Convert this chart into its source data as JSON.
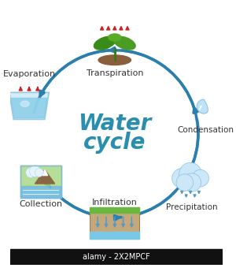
{
  "title_line1": "Water",
  "title_line2": "cycle",
  "title_color": "#2a8faf",
  "title_fontsize": 20,
  "bg_color": "#ffffff",
  "arrow_color": "#2a7faf",
  "label_color": "#333333",
  "label_fontsize": 8,
  "watermark": "alamy - 2X2MPCF",
  "watermark_bg": "#111111",
  "watermark_color": "#ffffff",
  "watermark_fontsize": 7
}
